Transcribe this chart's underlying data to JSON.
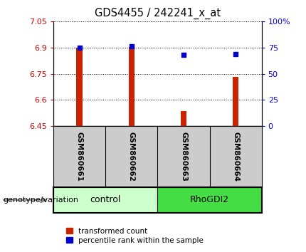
{
  "title": "GDS4455 / 242241_x_at",
  "samples": [
    "GSM860661",
    "GSM860662",
    "GSM860663",
    "GSM860664"
  ],
  "groups": [
    "control",
    "control",
    "RhoGDI2",
    "RhoGDI2"
  ],
  "red_bar_values": [
    6.9,
    6.905,
    6.535,
    6.73
  ],
  "pct_values": [
    75,
    76,
    68,
    69
  ],
  "bar_base": 6.45,
  "ylim_left": [
    6.45,
    7.05
  ],
  "ylim_right": [
    0,
    100
  ],
  "yticks_left": [
    6.45,
    6.6,
    6.75,
    6.9,
    7.05
  ],
  "yticks_right": [
    0,
    25,
    50,
    75,
    100
  ],
  "ytick_labels_left": [
    "6.45",
    "6.6",
    "6.75",
    "6.9",
    "7.05"
  ],
  "ytick_labels_right": [
    "0",
    "25",
    "50",
    "75",
    "100%"
  ],
  "left_tick_color": "#cc0000",
  "right_tick_color": "#0000cc",
  "red_color": "#cc2200",
  "blue_color": "#0000cc",
  "bar_width": 0.12,
  "blue_sq_size": 25,
  "bg_plot": "#ffffff",
  "bg_label_area": "#cccccc",
  "control_color": "#ccffcc",
  "rhogdi2_color": "#44dd44",
  "legend_red_label": "transformed count",
  "legend_blue_label": "percentile rank within the sample",
  "genotype_label": "genotype/variation"
}
